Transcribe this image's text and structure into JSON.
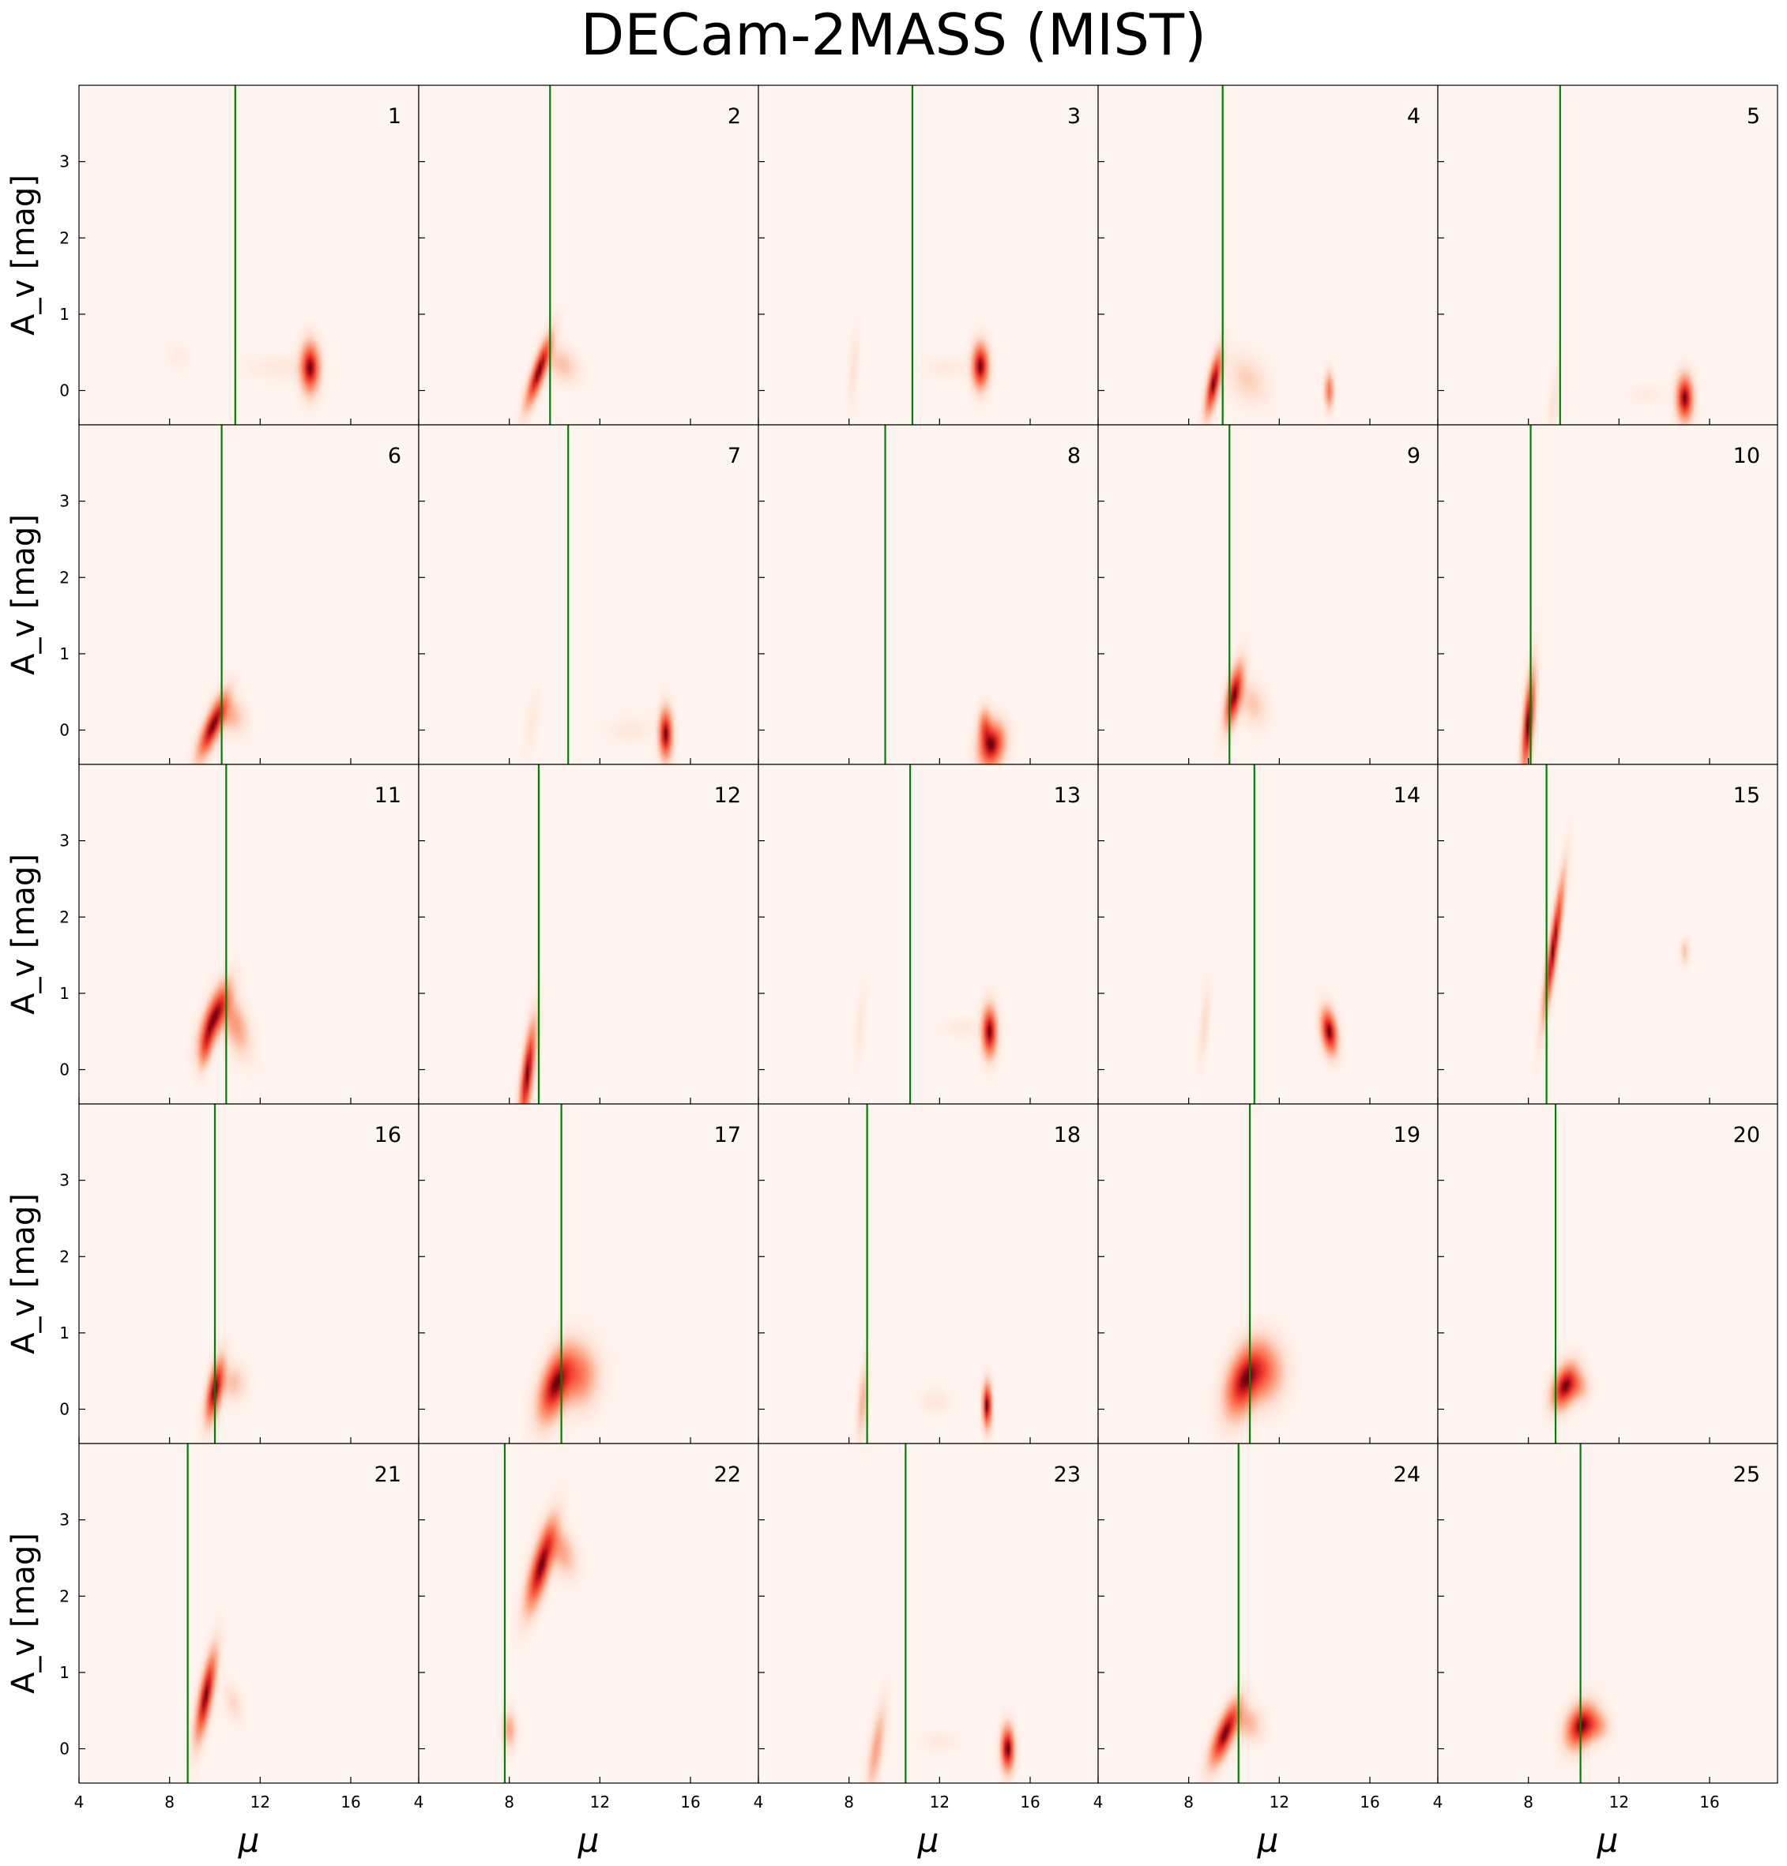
{
  "figure": {
    "title": "DECam-2MASS (MIST)"
  },
  "chart_data": {
    "type": "heatmap",
    "title": "DECam-2MASS (MIST)",
    "xlabel": "μ",
    "ylabel": "A_v [mag]",
    "xlim": [
      4,
      19
    ],
    "ylim": [
      -0.45,
      4.0
    ],
    "x_ticks": [
      4,
      8,
      12,
      16
    ],
    "y_ticks": [
      0,
      1,
      2,
      3
    ],
    "colormap": "Reds",
    "line_color": "#008000",
    "background_color": "#fff4f0",
    "panels": [
      {
        "id": "1",
        "mu_line": 10.9,
        "blobs": [
          {
            "mu": 14.2,
            "av": 0.3,
            "smu": 0.25,
            "sav": 0.2,
            "rho": 0.0,
            "amp": 1.0
          },
          {
            "mu": 13.0,
            "av": 0.3,
            "smu": 1.0,
            "sav": 0.1,
            "rho": 0.0,
            "amp": 0.06
          },
          {
            "mu": 8.4,
            "av": 0.45,
            "smu": 0.3,
            "sav": 0.1,
            "rho": 0.0,
            "amp": 0.04
          }
        ]
      },
      {
        "id": "2",
        "mu_line": 9.8,
        "blobs": [
          {
            "mu": 9.3,
            "av": 0.25,
            "smu": 0.35,
            "sav": 0.28,
            "rho": 0.85,
            "amp": 1.0
          },
          {
            "mu": 10.3,
            "av": 0.35,
            "smu": 0.45,
            "sav": 0.15,
            "rho": -0.3,
            "amp": 0.2
          }
        ]
      },
      {
        "id": "3",
        "mu_line": 10.8,
        "blobs": [
          {
            "mu": 13.8,
            "av": 0.32,
            "smu": 0.22,
            "sav": 0.18,
            "rho": 0.0,
            "amp": 1.0
          },
          {
            "mu": 8.2,
            "av": 0.3,
            "smu": 0.15,
            "sav": 0.3,
            "rho": 0.5,
            "amp": 0.08
          },
          {
            "mu": 12.3,
            "av": 0.3,
            "smu": 0.6,
            "sav": 0.08,
            "rho": 0.0,
            "amp": 0.05
          }
        ]
      },
      {
        "id": "4",
        "mu_line": 9.5,
        "blobs": [
          {
            "mu": 9.1,
            "av": 0.1,
            "smu": 0.22,
            "sav": 0.25,
            "rho": 0.7,
            "amp": 1.0
          },
          {
            "mu": 10.6,
            "av": 0.15,
            "smu": 0.55,
            "sav": 0.2,
            "rho": -0.3,
            "amp": 0.15
          },
          {
            "mu": 14.2,
            "av": 0.0,
            "smu": 0.12,
            "sav": 0.15,
            "rho": 0.0,
            "amp": 0.5
          }
        ]
      },
      {
        "id": "5",
        "mu_line": 9.4,
        "blobs": [
          {
            "mu": 14.9,
            "av": -0.1,
            "smu": 0.22,
            "sav": 0.18,
            "rho": 0.0,
            "amp": 1.0
          },
          {
            "mu": 9.1,
            "av": -0.15,
            "smu": 0.15,
            "sav": 0.25,
            "rho": 0.5,
            "amp": 0.08
          },
          {
            "mu": 13.2,
            "av": -0.05,
            "smu": 0.5,
            "sav": 0.08,
            "rho": 0.0,
            "amp": 0.04
          }
        ]
      },
      {
        "id": "6",
        "mu_line": 10.3,
        "blobs": [
          {
            "mu": 9.9,
            "av": 0.05,
            "smu": 0.4,
            "sav": 0.25,
            "rho": 0.8,
            "amp": 1.0
          },
          {
            "mu": 10.7,
            "av": 0.2,
            "smu": 0.4,
            "sav": 0.15,
            "rho": -0.2,
            "amp": 0.25
          }
        ]
      },
      {
        "id": "7",
        "mu_line": 10.6,
        "blobs": [
          {
            "mu": 14.9,
            "av": -0.05,
            "smu": 0.18,
            "sav": 0.2,
            "rho": 0.0,
            "amp": 1.0
          },
          {
            "mu": 13.3,
            "av": 0.0,
            "smu": 0.6,
            "sav": 0.1,
            "rho": 0.0,
            "amp": 0.06
          },
          {
            "mu": 9.0,
            "av": 0.1,
            "smu": 0.2,
            "sav": 0.25,
            "rho": 0.5,
            "amp": 0.05
          }
        ]
      },
      {
        "id": "8",
        "mu_line": 9.6,
        "blobs": [
          {
            "mu": 14.3,
            "av": -0.2,
            "smu": 0.35,
            "sav": 0.18,
            "rho": 0.2,
            "amp": 1.0
          },
          {
            "mu": 14.0,
            "av": 0.05,
            "smu": 0.18,
            "sav": 0.15,
            "rho": 0.0,
            "amp": 0.5
          }
        ]
      },
      {
        "id": "9",
        "mu_line": 9.8,
        "blobs": [
          {
            "mu": 10.0,
            "av": 0.45,
            "smu": 0.25,
            "sav": 0.25,
            "rho": 0.6,
            "amp": 1.0
          },
          {
            "mu": 10.8,
            "av": 0.35,
            "smu": 0.4,
            "sav": 0.18,
            "rho": -0.3,
            "amp": 0.18
          }
        ]
      },
      {
        "id": "10",
        "mu_line": 8.1,
        "blobs": [
          {
            "mu": 8.0,
            "av": 0.1,
            "smu": 0.18,
            "sav": 0.4,
            "rho": 0.6,
            "amp": 1.0
          }
        ]
      },
      {
        "id": "11",
        "mu_line": 10.5,
        "blobs": [
          {
            "mu": 10.0,
            "av": 0.7,
            "smu": 0.4,
            "sav": 0.25,
            "rho": 0.7,
            "amp": 1.0
          },
          {
            "mu": 9.6,
            "av": 0.3,
            "smu": 0.2,
            "sav": 0.18,
            "rho": 0.5,
            "amp": 0.5
          },
          {
            "mu": 10.9,
            "av": 0.6,
            "smu": 0.4,
            "sav": 0.25,
            "rho": -0.5,
            "amp": 0.35
          }
        ]
      },
      {
        "id": "12",
        "mu_line": 9.3,
        "blobs": [
          {
            "mu": 8.8,
            "av": -0.05,
            "smu": 0.22,
            "sav": 0.4,
            "rho": 0.7,
            "amp": 1.0
          }
        ]
      },
      {
        "id": "13",
        "mu_line": 10.7,
        "blobs": [
          {
            "mu": 14.2,
            "av": 0.5,
            "smu": 0.2,
            "sav": 0.2,
            "rho": 0.0,
            "amp": 1.0
          },
          {
            "mu": 8.5,
            "av": 0.6,
            "smu": 0.15,
            "sav": 0.3,
            "rho": 0.5,
            "amp": 0.06
          },
          {
            "mu": 13.0,
            "av": 0.55,
            "smu": 0.5,
            "sav": 0.08,
            "rho": 0.0,
            "amp": 0.05
          }
        ]
      },
      {
        "id": "14",
        "mu_line": 10.9,
        "blobs": [
          {
            "mu": 14.2,
            "av": 0.5,
            "smu": 0.22,
            "sav": 0.18,
            "rho": -0.3,
            "amp": 1.0
          },
          {
            "mu": 8.7,
            "av": 0.6,
            "smu": 0.15,
            "sav": 0.3,
            "rho": 0.6,
            "amp": 0.12
          }
        ]
      },
      {
        "id": "15",
        "mu_line": 8.8,
        "blobs": [
          {
            "mu": 9.1,
            "av": 1.6,
            "smu": 0.28,
            "sav": 0.55,
            "rho": 0.9,
            "amp": 1.0
          },
          {
            "mu": 14.9,
            "av": 1.55,
            "smu": 0.12,
            "sav": 0.1,
            "rho": 0.0,
            "amp": 0.2
          }
        ]
      },
      {
        "id": "16",
        "mu_line": 10.0,
        "blobs": [
          {
            "mu": 10.0,
            "av": 0.25,
            "smu": 0.25,
            "sav": 0.25,
            "rho": 0.6,
            "amp": 1.0
          },
          {
            "mu": 10.8,
            "av": 0.35,
            "smu": 0.35,
            "sav": 0.15,
            "rho": 0.0,
            "amp": 0.2
          }
        ]
      },
      {
        "id": "17",
        "mu_line": 10.3,
        "blobs": [
          {
            "mu": 10.0,
            "av": 0.3,
            "smu": 0.45,
            "sav": 0.28,
            "rho": 0.5,
            "amp": 1.0
          },
          {
            "mu": 11.0,
            "av": 0.45,
            "smu": 0.55,
            "sav": 0.25,
            "rho": 0.0,
            "amp": 0.55
          }
        ]
      },
      {
        "id": "18",
        "mu_line": 8.8,
        "blobs": [
          {
            "mu": 14.1,
            "av": 0.05,
            "smu": 0.12,
            "sav": 0.18,
            "rho": 0.0,
            "amp": 1.0
          },
          {
            "mu": 8.6,
            "av": 0.1,
            "smu": 0.15,
            "sav": 0.3,
            "rho": 0.5,
            "amp": 0.25
          },
          {
            "mu": 11.8,
            "av": 0.1,
            "smu": 0.4,
            "sav": 0.1,
            "rho": 0.0,
            "amp": 0.06
          }
        ]
      },
      {
        "id": "19",
        "mu_line": 10.7,
        "blobs": [
          {
            "mu": 10.4,
            "av": 0.35,
            "smu": 0.5,
            "sav": 0.28,
            "rho": 0.4,
            "amp": 1.0
          },
          {
            "mu": 11.3,
            "av": 0.5,
            "smu": 0.55,
            "sav": 0.25,
            "rho": 0.0,
            "amp": 0.6
          }
        ]
      },
      {
        "id": "20",
        "mu_line": 9.2,
        "blobs": [
          {
            "mu": 9.6,
            "av": 0.3,
            "smu": 0.35,
            "sav": 0.18,
            "rho": 0.4,
            "amp": 1.0
          },
          {
            "mu": 10.2,
            "av": 0.3,
            "smu": 0.3,
            "sav": 0.12,
            "rho": 0.0,
            "amp": 0.3
          }
        ]
      },
      {
        "id": "21",
        "mu_line": 8.8,
        "blobs": [
          {
            "mu": 9.6,
            "av": 0.7,
            "smu": 0.28,
            "sav": 0.35,
            "rho": 0.75,
            "amp": 1.0
          },
          {
            "mu": 10.8,
            "av": 0.6,
            "smu": 0.25,
            "sav": 0.15,
            "rho": -0.4,
            "amp": 0.12
          }
        ]
      },
      {
        "id": "22",
        "mu_line": 7.8,
        "blobs": [
          {
            "mu": 9.4,
            "av": 2.4,
            "smu": 0.4,
            "sav": 0.35,
            "rho": 0.75,
            "amp": 1.0
          },
          {
            "mu": 10.3,
            "av": 2.6,
            "smu": 0.4,
            "sav": 0.2,
            "rho": -0.4,
            "amp": 0.3
          },
          {
            "mu": 8.0,
            "av": 0.25,
            "smu": 0.18,
            "sav": 0.15,
            "rho": 0.0,
            "amp": 0.3
          }
        ]
      },
      {
        "id": "23",
        "mu_line": 10.5,
        "blobs": [
          {
            "mu": 15.0,
            "av": 0.0,
            "smu": 0.18,
            "sav": 0.18,
            "rho": 0.0,
            "amp": 1.0
          },
          {
            "mu": 9.2,
            "av": 0.0,
            "smu": 0.25,
            "sav": 0.35,
            "rho": 0.7,
            "amp": 0.3
          },
          {
            "mu": 12.0,
            "av": 0.1,
            "smu": 0.5,
            "sav": 0.08,
            "rho": 0.0,
            "amp": 0.05
          }
        ]
      },
      {
        "id": "24",
        "mu_line": 10.2,
        "blobs": [
          {
            "mu": 9.6,
            "av": 0.2,
            "smu": 0.4,
            "sav": 0.25,
            "rho": 0.75,
            "amp": 1.0
          },
          {
            "mu": 10.6,
            "av": 0.35,
            "smu": 0.4,
            "sav": 0.15,
            "rho": -0.2,
            "amp": 0.25
          }
        ]
      },
      {
        "id": "25",
        "mu_line": 10.3,
        "blobs": [
          {
            "mu": 10.3,
            "av": 0.3,
            "smu": 0.4,
            "sav": 0.18,
            "rho": 0.3,
            "amp": 1.0
          },
          {
            "mu": 11.0,
            "av": 0.3,
            "smu": 0.35,
            "sav": 0.12,
            "rho": 0.0,
            "amp": 0.35
          }
        ]
      }
    ]
  }
}
